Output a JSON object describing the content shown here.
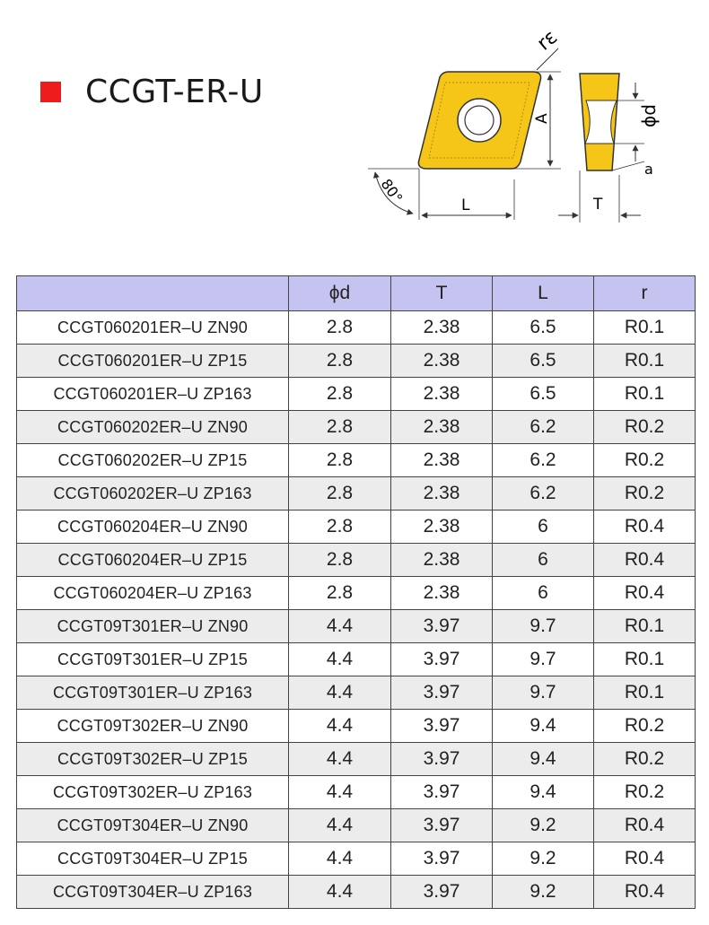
{
  "title": "CCGT-ER-U",
  "accent_color": "#ee1c1c",
  "header_color": "#c5c3f0",
  "insert_color": "#f5c518",
  "diagram": {
    "labels": {
      "corner_radius": "rε",
      "width": "A",
      "length": "L",
      "angle": "80°",
      "hole": "ϕd",
      "thickness": "T",
      "a": "a"
    }
  },
  "table": {
    "headers": [
      "",
      "ϕd",
      "T",
      "L",
      "r"
    ],
    "rows": [
      [
        "CCGT060201ER–U ZN90",
        "2.8",
        "2.38",
        "6.5",
        "R0.1"
      ],
      [
        "CCGT060201ER–U ZP15",
        "2.8",
        "2.38",
        "6.5",
        "R0.1"
      ],
      [
        "CCGT060201ER–U ZP163",
        "2.8",
        "2.38",
        "6.5",
        "R0.1"
      ],
      [
        "CCGT060202ER–U ZN90",
        "2.8",
        "2.38",
        "6.2",
        "R0.2"
      ],
      [
        "CCGT060202ER–U ZP15",
        "2.8",
        "2.38",
        "6.2",
        "R0.2"
      ],
      [
        "CCGT060202ER–U ZP163",
        "2.8",
        "2.38",
        "6.2",
        "R0.2"
      ],
      [
        "CCGT060204ER–U ZN90",
        "2.8",
        "2.38",
        "6",
        "R0.4"
      ],
      [
        "CCGT060204ER–U ZP15",
        "2.8",
        "2.38",
        "6",
        "R0.4"
      ],
      [
        "CCGT060204ER–U ZP163",
        "2.8",
        "2.38",
        "6",
        "R0.4"
      ],
      [
        "CCGT09T301ER–U ZN90",
        "4.4",
        "3.97",
        "9.7",
        "R0.1"
      ],
      [
        "CCGT09T301ER–U ZP15",
        "4.4",
        "3.97",
        "9.7",
        "R0.1"
      ],
      [
        "CCGT09T301ER–U ZP163",
        "4.4",
        "3.97",
        "9.7",
        "R0.1"
      ],
      [
        "CCGT09T302ER–U ZN90",
        "4.4",
        "3.97",
        "9.4",
        "R0.2"
      ],
      [
        "CCGT09T302ER–U ZP15",
        "4.4",
        "3.97",
        "9.4",
        "R0.2"
      ],
      [
        "CCGT09T302ER–U ZP163",
        "4.4",
        "3.97",
        "9.4",
        "R0.2"
      ],
      [
        "CCGT09T304ER–U ZN90",
        "4.4",
        "3.97",
        "9.2",
        "R0.4"
      ],
      [
        "CCGT09T304ER–U ZP15",
        "4.4",
        "3.97",
        "9.2",
        "R0.4"
      ],
      [
        "CCGT09T304ER–U ZP163",
        "4.4",
        "3.97",
        "9.2",
        "R0.4"
      ]
    ]
  }
}
